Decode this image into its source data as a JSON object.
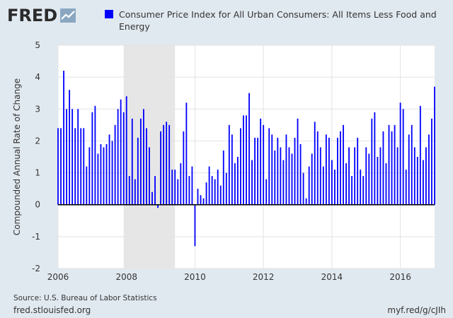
{
  "header": {
    "logo_text": "FRED"
  },
  "footer": {
    "source": "Source: U.S. Bureau of Labor Statistics",
    "site": "fred.stlouisfed.org",
    "shortlink": "myf.red/g/cJIh"
  },
  "colors": {
    "bar": "#0000ff",
    "plot_bg": "#ffffff",
    "page_bg": "#e1e9f0",
    "recession": "#e6e6e6",
    "grid": "#e3e3e3"
  },
  "chart_data": {
    "type": "bar",
    "title": "Consumer Price Index for All Urban Consumers: All Items Less Food and Energy",
    "ylabel": "Compounded Annual Rate of Change",
    "xlabel": "",
    "x_start": "2006-01",
    "x_end": "2017-01",
    "ylim": [
      -2,
      5
    ],
    "yticks": [
      "-2",
      "-1",
      "0",
      "1",
      "2",
      "3",
      "4",
      "5"
    ],
    "xticks": [
      "2006",
      "2008",
      "2010",
      "2012",
      "2014",
      "2016"
    ],
    "grid": true,
    "recession": {
      "start": "2007-12",
      "end": "2009-06"
    },
    "series": [
      {
        "name": "Consumer Price Index for All Urban Consumers: All Items Less Food and Energy",
        "start": "2006-01",
        "values": [
          2.4,
          2.4,
          4.2,
          3.0,
          3.6,
          3.0,
          2.4,
          3.0,
          2.4,
          2.4,
          1.2,
          1.8,
          2.9,
          3.1,
          1.6,
          1.9,
          1.8,
          1.9,
          2.2,
          2.0,
          2.5,
          3.0,
          3.3,
          2.9,
          3.4,
          0.9,
          2.7,
          0.8,
          2.1,
          2.7,
          3.0,
          2.4,
          1.8,
          0.4,
          0.9,
          -0.1,
          2.3,
          2.5,
          2.6,
          2.5,
          1.1,
          1.1,
          0.8,
          1.3,
          2.3,
          3.2,
          0.9,
          1.2,
          -1.3,
          0.5,
          0.3,
          0.2,
          0.7,
          1.2,
          0.9,
          0.8,
          1.1,
          0.6,
          1.7,
          1.0,
          2.5,
          2.2,
          1.3,
          1.5,
          2.4,
          2.8,
          2.8,
          3.5,
          1.4,
          2.1,
          2.1,
          2.7,
          2.5,
          0.8,
          2.4,
          2.2,
          1.7,
          2.1,
          1.8,
          1.4,
          2.2,
          1.8,
          1.6,
          2.1,
          2.7,
          1.9,
          1.0,
          0.2,
          1.2,
          1.6,
          2.6,
          2.3,
          1.8,
          1.2,
          2.2,
          2.1,
          1.4,
          1.1,
          2.1,
          2.3,
          2.5,
          1.3,
          1.8,
          0.9,
          1.8,
          2.1,
          1.1,
          0.9,
          1.8,
          1.6,
          2.7,
          2.9,
          1.5,
          1.8,
          2.3,
          1.3,
          2.5,
          2.3,
          2.5,
          1.8,
          3.2,
          3.0,
          1.1,
          2.2,
          2.5,
          1.8,
          1.5,
          3.1,
          1.4,
          1.8,
          2.2,
          2.7,
          3.7
        ]
      }
    ]
  }
}
